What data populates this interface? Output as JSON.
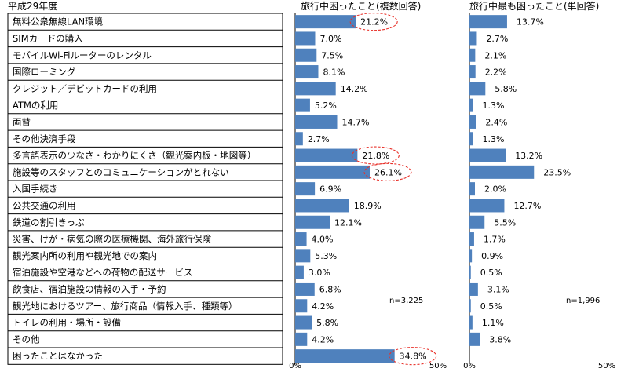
{
  "header": "平成29年度",
  "categories": [
    "無料公衆無線LAN環境",
    "SIMカードの購入",
    "モバイルWi-Fiルーターのレンタル",
    "国際ローミング",
    "クレジット／デビットカードの利用",
    "ATMの利用",
    "両替",
    "その他決済手段",
    "多言語表示の少なさ・わかりにくさ（観光案内板・地図等）",
    "施設等のスタッフとのコミュニケーションがとれない",
    "入国手続き",
    "公共交通の利用",
    "鉄道の割引きっぷ",
    "災害、けが・病気の際の医療機関、海外旅行保険",
    "観光案内所の利用や観光地での案内",
    "宿泊施設や空港などへの荷物の配送サービス",
    "飲食店、宿泊施設の情報の入手・予約",
    "観光地におけるツアー、旅行商品（情報入手、種類等）",
    "トイレの利用・場所・設備",
    "その他",
    "困ったことはなかった"
  ],
  "colors": {
    "bar": "#4f81bd",
    "highlight": "#e8312a",
    "grid": "#000000"
  },
  "chart_data": [
    {
      "type": "bar",
      "orientation": "horizontal",
      "title": "旅行中困ったこと(複数回答)",
      "sample_label": "n=3,225",
      "xlim": [
        0,
        50
      ],
      "tick_labels": [
        "0%",
        "50%"
      ],
      "values": [
        21.2,
        7.0,
        7.5,
        8.1,
        14.2,
        5.2,
        14.7,
        2.7,
        21.8,
        26.1,
        6.9,
        18.9,
        12.1,
        4.0,
        5.3,
        3.0,
        6.8,
        4.2,
        5.8,
        4.2,
        34.8
      ],
      "labels": [
        "21.2%",
        "7.0%",
        "7.5%",
        "8.1%",
        "14.2%",
        "5.2%",
        "14.7%",
        "2.7%",
        "21.8%",
        "26.1%",
        "6.9%",
        "18.9%",
        "12.1%",
        "4.0%",
        "5.3%",
        "3.0%",
        "6.8%",
        "4.2%",
        "5.8%",
        "4.2%",
        "34.8%"
      ],
      "highlighted": [
        0,
        8,
        9,
        20
      ]
    },
    {
      "type": "bar",
      "orientation": "horizontal",
      "title": "旅行中最も困ったこと(単回答)",
      "sample_label": "n=1,996",
      "xlim": [
        0,
        50
      ],
      "tick_labels": [
        "0%",
        "50%"
      ],
      "values": [
        13.7,
        2.7,
        2.1,
        2.2,
        5.8,
        1.3,
        2.4,
        1.3,
        13.2,
        23.5,
        2.0,
        12.7,
        5.5,
        1.7,
        0.9,
        0.5,
        3.1,
        0.5,
        1.1,
        3.8,
        0
      ],
      "labels": [
        "13.7%",
        "2.7%",
        "2.1%",
        "2.2%",
        "5.8%",
        "1.3%",
        "2.4%",
        "1.3%",
        "13.2%",
        "23.5%",
        "2.0%",
        "12.7%",
        "5.5%",
        "1.7%",
        "0.9%",
        "0.5%",
        "3.1%",
        "0.5%",
        "1.1%",
        "3.8%",
        ""
      ],
      "highlighted": []
    }
  ]
}
